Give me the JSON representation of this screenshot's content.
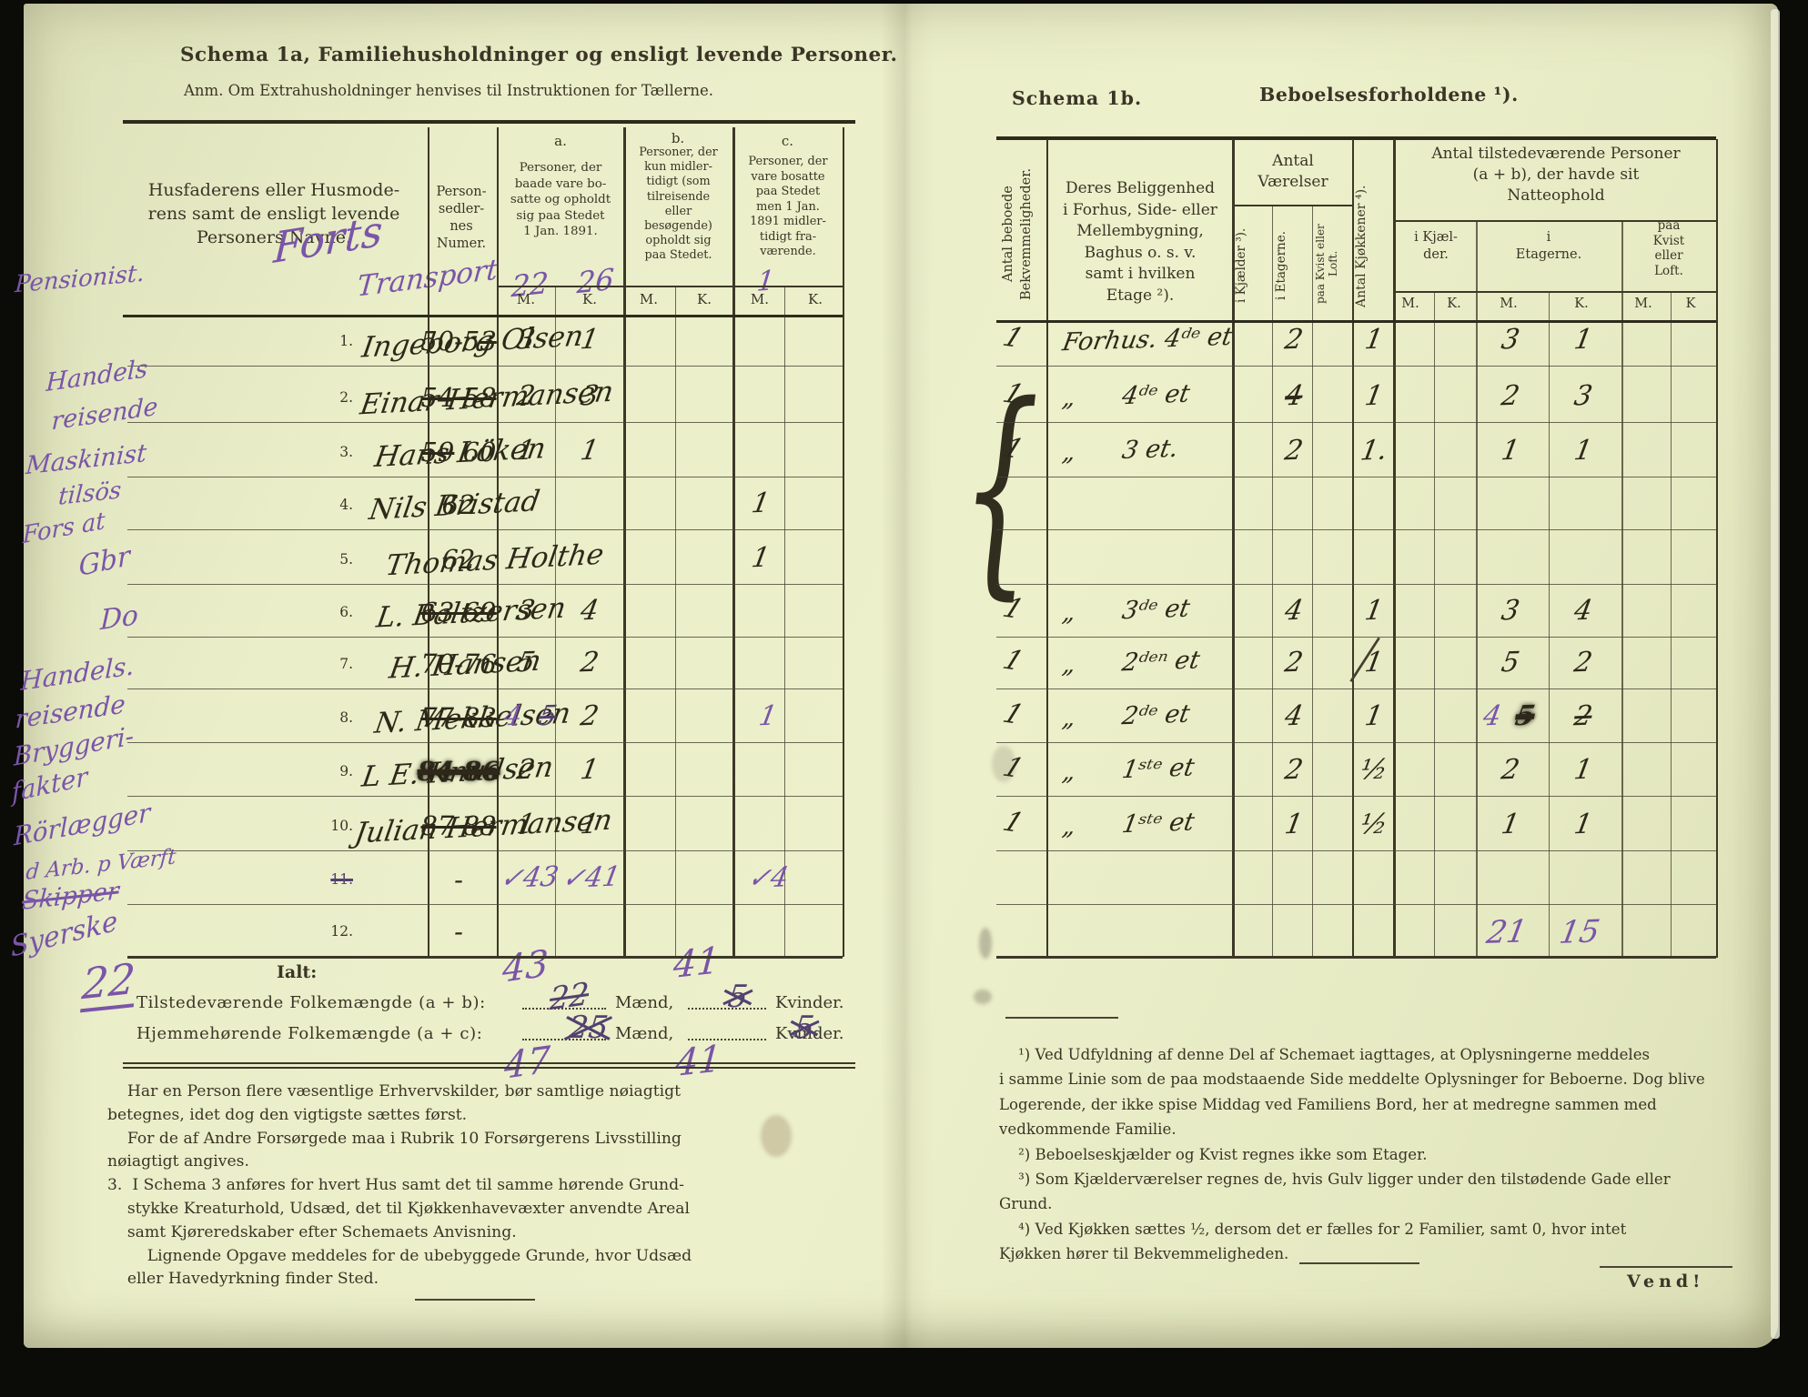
{
  "left_page": {
    "title": "Schema 1a,  Familiehusholdninger og ensligt levende Personer.",
    "subtitle": "Anm.  Om Extrahusholdninger henvises til Instruktionen for Tællerne.",
    "table": {
      "name_header": "Husfaderens eller Husmode-\nrens samt de ensligt levende\nPersoners Navne.",
      "numer_header": "Person-\nsedler-\nnes\nNumer.",
      "col_a": {
        "label": "a.",
        "desc": "Personer, der\nbaade vare bo-\nsatte og opholdt\nsig paa Stedet\n1 Jan. 1891."
      },
      "col_b": {
        "label": "b.",
        "desc": "Personer, der\nkun midler-\ntidigt (som\ntilreisende\neller\nbesøgende)\nopholdt sig\npaa Stedet."
      },
      "col_c": {
        "label": "c.",
        "desc": "Personer, der\nvare bosatte\npaa Stedet\nmen 1 Jan.\n1891 midler-\ntidigt fra-\nværende."
      },
      "m": "M.",
      "k": "K."
    },
    "transport": {
      "margin": "Pensionist.",
      "word1": "Forts",
      "word2": "Transport",
      "a_m": "22",
      "a_k": "26",
      "c_m": "1"
    },
    "margin_notes": [
      {
        "text": "Handels"
      },
      {
        "text": "reisende"
      },
      {
        "text": "Maskinist"
      },
      {
        "text": "tilsös"
      },
      {
        "text": "Fors at"
      },
      {
        "text": "Gbr"
      },
      {
        "text": "Do"
      },
      {
        "text": "Handels."
      },
      {
        "text": "reisende"
      },
      {
        "text": "Bryggeri-"
      },
      {
        "text": "fakter"
      },
      {
        "text": "Rörlægger"
      },
      {
        "text": "d Arb. p Værft"
      },
      {
        "text": "Skipper",
        "struck": true
      },
      {
        "text": "Syerske"
      },
      {
        "text": "22",
        "big": true
      }
    ],
    "rows": [
      {
        "no": "1.",
        "name": "Ingeborg Olsen",
        "numer": "50-5",
        "numer_struck": "3",
        "a_m": "3",
        "a_k": "1"
      },
      {
        "no": "2.",
        "name": "Einar Hermansen",
        "numer_struck": "54 58",
        "a_m": "2",
        "a_k": "3"
      },
      {
        "no": "3.",
        "name": "Hans Löken",
        "numer_struck": "59",
        "numer_post": " 60",
        "a_m": "1",
        "a_k": "1"
      },
      {
        "no": "4.",
        "name": "Nils Bristad",
        "numer": "62",
        "c_m": "1"
      },
      {
        "no": "5.",
        "name": "Thomas Holthe",
        "numer": "62",
        "c_m": "1"
      },
      {
        "no": "6.",
        "name": "L. Baltzersen",
        "numer_struck": "63 69",
        "a_m": "3",
        "a_k": "4"
      },
      {
        "no": "7.",
        "name": "H. Hansen",
        "numer": "70-76",
        "a_m": "5",
        "a_k": "2"
      },
      {
        "no": "8.",
        "name": "N. Mekkelsen",
        "numer_struck": "77-83",
        "a_m_purple": "4",
        "a_m_struck": "5",
        "a_k": "2",
        "c_m_purple": "1"
      },
      {
        "no": "9.",
        "name": "L E. Knudsen",
        "numer_struck": "84 86",
        "blot": true,
        "a_m": "2",
        "a_k": "1"
      },
      {
        "no": "10.",
        "name": "Julian Hermansen",
        "numer_struck": "87 88",
        "a_m": "1",
        "a_k": "1"
      },
      {
        "no": "11.",
        "no_struck": true,
        "numer": "-",
        "a_m_purple": "✓43",
        "a_k_purple": "✓41",
        "c_m_purple": "✓4"
      },
      {
        "no": "12.",
        "numer": "-"
      }
    ],
    "summary": {
      "ialt": "Ialt:",
      "line1_label": "Tilstedeværende Folkemængde (a + b):",
      "line2_label": "Hjemmehørende Folkemængde (a + c):",
      "maend": "Mænd,",
      "kvinder": "Kvinder.",
      "line1_struck_m": "22",
      "line1_corr_m": "43",
      "line1_struck_k": "5",
      "line1_corr_k": "41",
      "line2_struck_m": "25",
      "line2_corr_m": "47",
      "line2_struck_k": "5",
      "line2_corr_k": "41"
    },
    "notes": "    Har en Person flere væsentlige Erhvervskilder, bør samtlige nøiagtigt\nbetegnes, idet dog den vigtigste sættes først.\n    For de af Andre Forsørgede maa i Rubrik 10 Forsørgerens Livsstilling\nnøiagtigt angives.\n3.  I Schema 3 anføres for hvert Hus samt det til samme hørende Grund-\n    stykke Kreaturhold, Udsæd, det til Kjøkkenhavevæxter anvendte Areal\n    samt Kjøreredskaber efter Schemaets Anvisning.\n        Lignende Opgave meddeles for de ubebyggede Grunde, hvor Udsæd\n    eller Havedyrkning finder Sted."
  },
  "right_page": {
    "title_left": "Schema 1b.",
    "title_right": "Beboelsesforholdene ¹).",
    "table": {
      "col1": "Antal beboede\nBekvemmeligheder.",
      "col2": "Deres Beliggenhed\ni Forhus, Side- eller\nMellembygning,\nBaghus o. s. v.\nsamt i hvilken\nEtage ²).",
      "vaerelser": "Antal\nVærelser",
      "sub_kjaelder": "i Kjælder ³).",
      "sub_etagerne": "i Etagerne.",
      "sub_kvist": "paa Kvist eller\nLoft.",
      "kjokkener": "Antal Kjøkkener ⁴).",
      "natteophold": "Antal tilstedeværende Personer\n(a + b), der havde sit\nNatteophold",
      "grp_kjaelder": "i Kjæl-\nder.",
      "grp_etagerne": "i\nEtagerne.",
      "grp_kvist": "paa\nKvist\neller\nLoft.",
      "m": "M.",
      "k": "K.",
      "k2": "K"
    },
    "brace_glyph": "{",
    "rows": [
      {
        "bekv": "1",
        "sted": "Forhus. 4ᵈᵉ et",
        "vrl": "2",
        "kjk": "1",
        "e_m": "3",
        "e_k": "1"
      },
      {
        "bekv": "1",
        "sted": "„      4ᵈᵉ et",
        "vrl": "4",
        "vrl_struck": true,
        "kjk": "1",
        "e_m": "2",
        "e_k": "3"
      },
      {
        "bekv": "1",
        "sted": "„      3 et.",
        "vrl": "2",
        "kjk": "1.",
        "e_m": "1",
        "e_k": "1"
      },
      {},
      {},
      {
        "bekv": "1",
        "sted": "„      3ᵈᵉ et",
        "vrl": "4",
        "kjk": "1",
        "e_m": "3",
        "e_k": "4"
      },
      {
        "bekv": "1",
        "sted": "„      2ᵈᵉⁿ et",
        "vrl": "2",
        "kjk": "1",
        "kjk_slash": true,
        "e_m": "5",
        "e_k": "2"
      },
      {
        "bekv": "1",
        "sted": "„      2ᵈᵉ et",
        "vrl": "4",
        "kjk": "1",
        "e_m_purple": "4",
        "e_m_struck": "5",
        "e_k": "2",
        "e_k_struck": true
      },
      {
        "bekv": "1",
        "sted": "„      1ˢᵗᵉ et",
        "vrl": "2",
        "kjk": "½",
        "e_m": "2",
        "e_k": "1"
      },
      {
        "bekv": "1",
        "sted": "„      1ˢᵗᵉ et",
        "vrl": "1",
        "kjk": "½",
        "e_m": "1",
        "e_k": "1"
      },
      {},
      {
        "e_m_purple2": "21",
        "e_k_purple2": "15"
      }
    ],
    "footnotes": "    ¹) Ved Udfyldning af denne Del af Schemaet iagttages, at Oplysningerne meddeles\ni samme Linie som de paa modstaaende Side meddelte Oplysninger for Beboerne. Dog blive\nLogerende, der ikke spise Middag ved Familiens Bord, her at medregne sammen med\nvedkommende Familie.\n    ²) Beboelseskjælder og Kvist regnes ikke som Etager.\n    ³) Som Kjælderværelser regnes de, hvis Gulv ligger under den tilstødende Gade eller\nGrund.\n    ⁴) Ved Kjøkken sættes ½, dersom det er fælles for 2 Familier, samt 0, hvor intet\nKjøkken hører til Bekvemmeligheden.",
    "vend": "Vend!"
  }
}
